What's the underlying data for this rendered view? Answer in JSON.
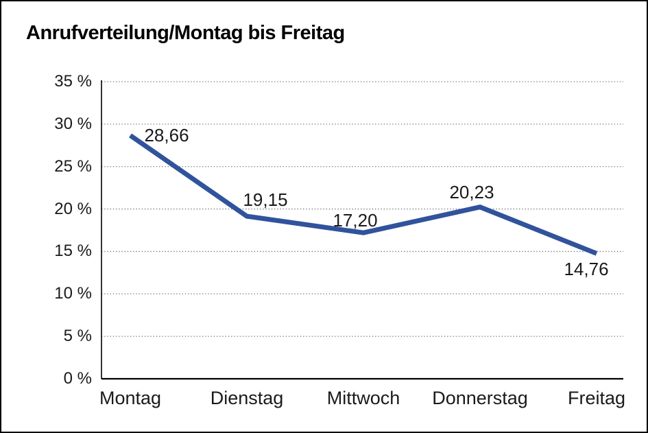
{
  "page": {
    "background": "#ffffff",
    "border_color": "#000000"
  },
  "chart_data": {
    "type": "line",
    "title": "Anrufverteilung/Montag bis Freitag",
    "categories": [
      "Montag",
      "Dienstag",
      "Mittwoch",
      "Donnerstag",
      "Freitag"
    ],
    "values": [
      28.66,
      19.15,
      17.2,
      20.23,
      14.76
    ],
    "point_labels": [
      "28,66",
      "19,15",
      "17,20",
      "20,23",
      "14,76"
    ],
    "xlabel": "",
    "ylabel": "",
    "ylim": [
      0,
      35
    ],
    "ytick_step": 5,
    "ytick_labels": [
      "0 %",
      "5 %",
      "10 %",
      "15 %",
      "20 %",
      "25 %",
      "30 %",
      "35 %"
    ],
    "grid": "horizontal-dotted",
    "legend": "none",
    "line_color": "#31539C",
    "grid_color": "#777777",
    "axis_color": "#000000",
    "label_color": "#1a1a1a"
  }
}
